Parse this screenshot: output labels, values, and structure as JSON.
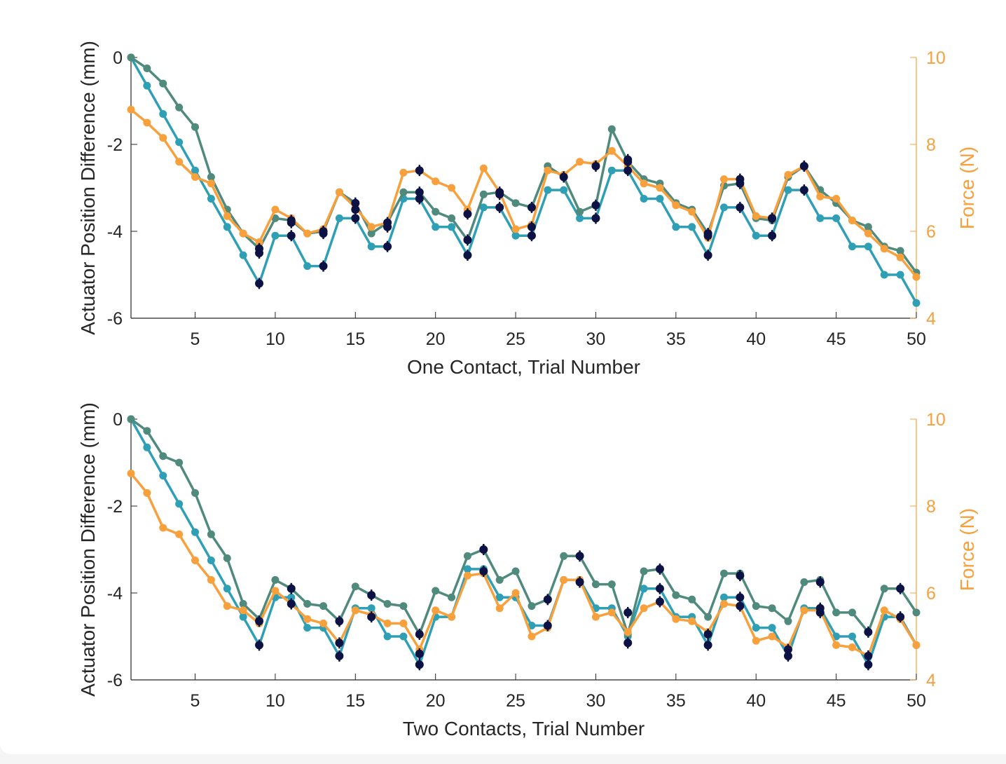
{
  "colors": {
    "teal": "#2e9fb5",
    "green": "#4f8a7d",
    "navy": "#0c1344",
    "orange": "#f7a03c",
    "axis": "#262626"
  },
  "chart_data": [
    {
      "type": "line",
      "xlabel": "One Contact, Trial Number",
      "ylabel": "Actuator Position Difference (mm)",
      "y2label": "Force (N)",
      "xlim": [
        1,
        50
      ],
      "ylim": [
        -6,
        0
      ],
      "y2lim": [
        4,
        10
      ],
      "x_ticks": [
        5,
        10,
        15,
        20,
        25,
        30,
        35,
        40,
        45,
        50
      ],
      "y_ticks": [
        -6,
        -4,
        -2,
        0
      ],
      "y2_ticks": [
        4,
        6,
        8,
        10
      ],
      "x": [
        1,
        2,
        3,
        4,
        5,
        6,
        7,
        8,
        9,
        10,
        11,
        12,
        13,
        14,
        15,
        16,
        17,
        18,
        19,
        20,
        21,
        22,
        23,
        24,
        25,
        26,
        27,
        28,
        29,
        30,
        31,
        32,
        33,
        34,
        35,
        36,
        37,
        38,
        39,
        40,
        41,
        42,
        43,
        44,
        45,
        46,
        47,
        48,
        49,
        50
      ],
      "series": [
        {
          "axis": "left",
          "color": "teal",
          "values": [
            0,
            -0.65,
            -1.3,
            -1.95,
            -2.6,
            -3.25,
            -3.9,
            -4.55,
            -5.2,
            -4.1,
            -4.1,
            -4.8,
            -4.8,
            -3.7,
            -3.7,
            -4.35,
            -4.35,
            -3.25,
            -3.25,
            -3.9,
            -3.9,
            -4.55,
            -3.45,
            -3.45,
            -4.1,
            -4.1,
            -3.05,
            -3.05,
            -3.7,
            -3.7,
            -2.6,
            -2.6,
            -3.25,
            -3.25,
            -3.9,
            -3.9,
            -4.55,
            -3.45,
            -3.45,
            -4.1,
            -4.1,
            -3.05,
            -3.05,
            -3.7,
            -3.7,
            -4.35,
            -4.35,
            -5.0,
            -5.0,
            -5.65
          ]
        },
        {
          "axis": "left",
          "color": "green",
          "values": [
            0,
            -0.25,
            -0.6,
            -1.15,
            -1.6,
            -2.75,
            -3.5,
            -4.05,
            -4.4,
            -3.7,
            -3.75,
            -4.05,
            -4.0,
            -3.1,
            -3.35,
            -4.05,
            -3.8,
            -3.1,
            -3.1,
            -3.55,
            -3.7,
            -4.2,
            -3.15,
            -3.1,
            -3.35,
            -3.45,
            -2.5,
            -2.75,
            -3.55,
            -3.4,
            -1.65,
            -2.4,
            -2.8,
            -2.9,
            -3.35,
            -3.5,
            -4.05,
            -2.95,
            -2.9,
            -3.7,
            -3.75,
            -2.75,
            -2.5,
            -3.05,
            -3.35,
            -3.75,
            -3.9,
            -4.35,
            -4.45,
            -4.95
          ]
        },
        {
          "axis": "right",
          "color": "orange",
          "values": [
            8.8,
            8.5,
            8.15,
            7.6,
            7.25,
            7.1,
            6.35,
            5.95,
            5.75,
            6.5,
            6.3,
            5.95,
            6.05,
            6.9,
            6.55,
            6.1,
            6.2,
            7.35,
            7.4,
            7.15,
            7.0,
            6.5,
            7.45,
            6.9,
            6.05,
            6.15,
            7.4,
            7.3,
            7.6,
            7.55,
            7.85,
            7.5,
            7.1,
            7.0,
            6.6,
            6.45,
            5.85,
            7.2,
            7.2,
            6.35,
            6.3,
            7.3,
            7.5,
            6.8,
            6.75,
            6.25,
            5.95,
            5.6,
            5.4,
            4.95
          ]
        }
      ],
      "markers": {
        "color": "navy",
        "points": [
          [
            9,
            -5.2
          ],
          [
            9,
            -4.4
          ],
          [
            9,
            -4.5
          ],
          [
            11,
            -4.1
          ],
          [
            11,
            -3.75
          ],
          [
            11,
            -3.8
          ],
          [
            13,
            -4.8
          ],
          [
            13,
            -4.0
          ],
          [
            13,
            -4.05
          ],
          [
            15,
            -3.7
          ],
          [
            15,
            -3.35
          ],
          [
            15,
            -3.5
          ],
          [
            17,
            -4.35
          ],
          [
            17,
            -3.8
          ],
          [
            17,
            -3.9
          ],
          [
            19,
            -3.25
          ],
          [
            19,
            -3.1
          ],
          [
            19,
            -2.6
          ],
          [
            22,
            -4.55
          ],
          [
            22,
            -4.2
          ],
          [
            22,
            -3.6
          ],
          [
            24,
            -3.45
          ],
          [
            24,
            -3.1
          ],
          [
            24,
            -3.15
          ],
          [
            26,
            -4.1
          ],
          [
            26,
            -3.45
          ],
          [
            26,
            -3.9
          ],
          [
            28,
            -2.75
          ],
          [
            30,
            -3.7
          ],
          [
            30,
            -3.4
          ],
          [
            30,
            -2.5
          ],
          [
            32,
            -2.6
          ],
          [
            32,
            -2.4
          ],
          [
            32,
            -2.35
          ],
          [
            37,
            -4.55
          ],
          [
            37,
            -4.05
          ],
          [
            37,
            -4.1
          ],
          [
            39,
            -3.45
          ],
          [
            39,
            -2.9
          ],
          [
            39,
            -2.8
          ],
          [
            41,
            -4.1
          ],
          [
            41,
            -3.7
          ],
          [
            41,
            -3.7
          ],
          [
            43,
            -3.05
          ],
          [
            43,
            -2.5
          ],
          [
            43,
            -2.5
          ]
        ]
      }
    },
    {
      "type": "line",
      "xlabel": "Two Contacts, Trial Number",
      "ylabel": "Actuator Position Difference (mm)",
      "y2label": "Force (N)",
      "xlim": [
        1,
        50
      ],
      "ylim": [
        -6,
        0
      ],
      "y2lim": [
        4,
        10
      ],
      "x_ticks": [
        5,
        10,
        15,
        20,
        25,
        30,
        35,
        40,
        45,
        50
      ],
      "y_ticks": [
        -6,
        -4,
        -2,
        0
      ],
      "y2_ticks": [
        4,
        6,
        8,
        10
      ],
      "x": [
        1,
        2,
        3,
        4,
        5,
        6,
        7,
        8,
        9,
        10,
        11,
        12,
        13,
        14,
        15,
        16,
        17,
        18,
        19,
        20,
        21,
        22,
        23,
        24,
        25,
        26,
        27,
        28,
        29,
        30,
        31,
        32,
        33,
        34,
        35,
        36,
        37,
        38,
        39,
        40,
        41,
        42,
        43,
        44,
        45,
        46,
        47,
        48,
        49,
        50
      ],
      "series": [
        {
          "axis": "left",
          "color": "teal",
          "values": [
            0,
            -0.65,
            -1.3,
            -1.95,
            -2.6,
            -3.25,
            -3.9,
            -4.55,
            -5.2,
            -4.1,
            -4.1,
            -4.8,
            -4.8,
            -5.45,
            -4.35,
            -4.35,
            -5.0,
            -5.0,
            -5.65,
            -4.55,
            -4.55,
            -3.45,
            -3.45,
            -4.1,
            -4.1,
            -4.75,
            -4.75,
            -3.7,
            -3.7,
            -4.35,
            -4.35,
            -5.0,
            -3.9,
            -3.9,
            -4.55,
            -4.55,
            -5.2,
            -4.1,
            -4.1,
            -4.8,
            -4.8,
            -5.45,
            -4.35,
            -4.35,
            -5.0,
            -5.0,
            -5.65,
            -4.55,
            -4.55,
            -5.2
          ]
        },
        {
          "axis": "left",
          "color": "green",
          "values": [
            0,
            -0.27,
            -0.85,
            -1.0,
            -1.7,
            -2.65,
            -3.2,
            -4.25,
            -4.6,
            -3.7,
            -3.9,
            -4.25,
            -4.3,
            -4.65,
            -3.85,
            -4.05,
            -4.25,
            -4.3,
            -4.95,
            -3.95,
            -4.1,
            -3.15,
            -3.0,
            -3.7,
            -3.5,
            -4.3,
            -4.15,
            -3.15,
            -3.15,
            -3.8,
            -3.8,
            -4.95,
            -3.5,
            -3.45,
            -4.05,
            -4.15,
            -4.55,
            -3.55,
            -3.55,
            -4.3,
            -4.35,
            -4.65,
            -3.75,
            -3.7,
            -4.45,
            -4.45,
            -4.9,
            -3.9,
            -3.9,
            -4.45
          ]
        },
        {
          "axis": "right",
          "color": "orange",
          "values": [
            8.75,
            8.3,
            7.5,
            7.35,
            6.75,
            6.3,
            5.7,
            5.6,
            5.3,
            6.05,
            5.75,
            5.4,
            5.3,
            4.85,
            5.6,
            5.5,
            5.3,
            5.3,
            4.7,
            5.6,
            5.45,
            6.4,
            6.45,
            5.65,
            6.0,
            5.0,
            5.2,
            6.3,
            6.3,
            5.45,
            5.55,
            5.1,
            5.65,
            5.8,
            5.4,
            5.35,
            5.1,
            5.75,
            5.7,
            4.9,
            5.0,
            4.75,
            5.6,
            5.6,
            4.8,
            4.75,
            4.55,
            5.6,
            5.4,
            4.8
          ]
        }
      ],
      "markers": {
        "color": "navy",
        "points": [
          [
            9,
            -5.2
          ],
          [
            9,
            -4.65
          ],
          [
            11,
            -4.25
          ],
          [
            11,
            -3.9
          ],
          [
            14,
            -5.45
          ],
          [
            14,
            -5.15
          ],
          [
            14,
            -4.65
          ],
          [
            16,
            -4.55
          ],
          [
            16,
            -4.05
          ],
          [
            19,
            -5.65
          ],
          [
            19,
            -5.4
          ],
          [
            19,
            -4.95
          ],
          [
            23,
            -3.5
          ],
          [
            23,
            -3.0
          ],
          [
            27,
            -4.75
          ],
          [
            27,
            -4.15
          ],
          [
            29,
            -3.75
          ],
          [
            29,
            -3.15
          ],
          [
            32,
            -5.15
          ],
          [
            32,
            -4.45
          ],
          [
            34,
            -4.2
          ],
          [
            34,
            -3.9
          ],
          [
            34,
            -3.45
          ],
          [
            37,
            -5.2
          ],
          [
            37,
            -4.95
          ],
          [
            39,
            -4.3
          ],
          [
            39,
            -4.1
          ],
          [
            39,
            -3.6
          ],
          [
            42,
            -5.45
          ],
          [
            42,
            -5.3
          ],
          [
            44,
            -4.45
          ],
          [
            44,
            -4.35
          ],
          [
            44,
            -3.75
          ],
          [
            47,
            -5.65
          ],
          [
            47,
            -5.45
          ],
          [
            47,
            -4.9
          ],
          [
            49,
            -4.55
          ],
          [
            49,
            -3.9
          ]
        ]
      }
    }
  ]
}
